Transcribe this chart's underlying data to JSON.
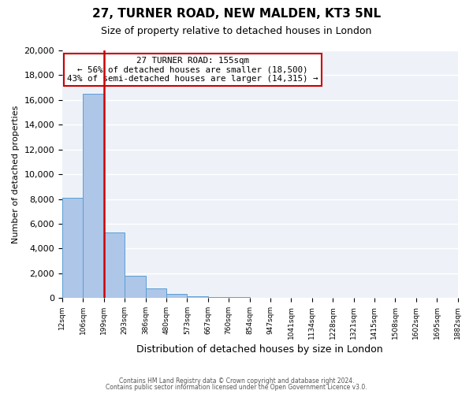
{
  "title": "27, TURNER ROAD, NEW MALDEN, KT3 5NL",
  "subtitle": "Size of property relative to detached houses in London",
  "xlabel": "Distribution of detached houses by size in London",
  "ylabel": "Number of detached properties",
  "bar_values": [
    8100,
    16500,
    5300,
    1800,
    750,
    300,
    150,
    100,
    50,
    0,
    0,
    0,
    0,
    0,
    0,
    0,
    0,
    0,
    0
  ],
  "bin_labels": [
    "12sqm",
    "106sqm",
    "199sqm",
    "293sqm",
    "386sqm",
    "480sqm",
    "573sqm",
    "667sqm",
    "760sqm",
    "854sqm",
    "947sqm",
    "1041sqm",
    "1134sqm",
    "1228sqm",
    "1321sqm",
    "1415sqm",
    "1508sqm",
    "1602sqm",
    "1695sqm",
    "1882sqm"
  ],
  "bar_color": "#aec6e8",
  "bar_edge_color": "#5a9fd4",
  "vline_color": "#cc0000",
  "vline_pos": 1.5,
  "annotation_title": "27 TURNER ROAD: 155sqm",
  "annotation_line1": "← 56% of detached houses are smaller (18,500)",
  "annotation_line2": "43% of semi-detached houses are larger (14,315) →",
  "annotation_box_color": "#ffffff",
  "annotation_box_edge": "#cc0000",
  "ylim": [
    0,
    20000
  ],
  "yticks": [
    0,
    2000,
    4000,
    6000,
    8000,
    10000,
    12000,
    14000,
    16000,
    18000,
    20000
  ],
  "footer1": "Contains HM Land Registry data © Crown copyright and database right 2024.",
  "footer2": "Contains public sector information licensed under the Open Government Licence v3.0.",
  "background_color": "#eef2f8",
  "grid_color": "#ffffff",
  "fig_bg": "#ffffff"
}
